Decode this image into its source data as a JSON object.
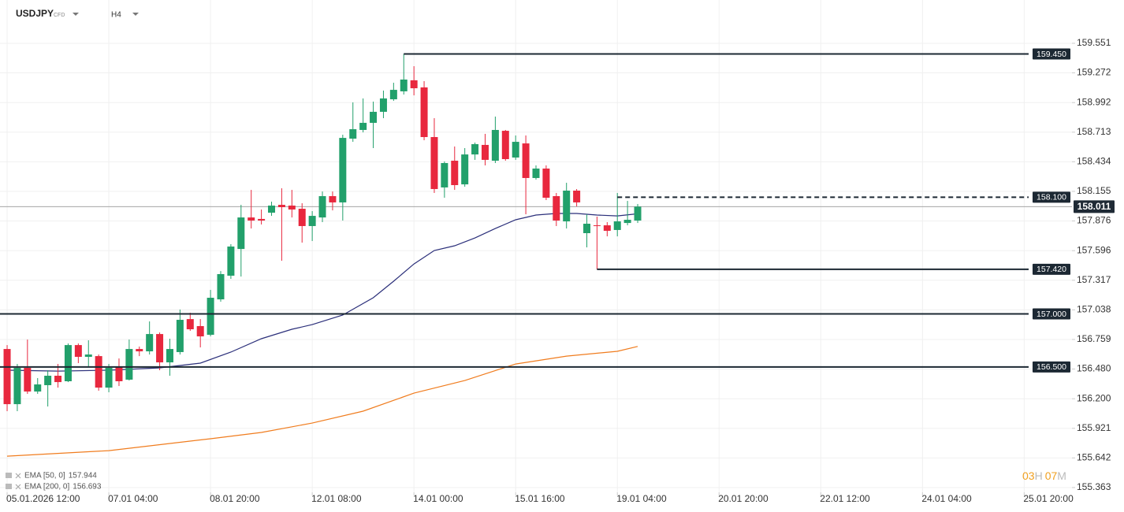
{
  "header": {
    "symbol": "USDJPY",
    "instrument_type": "CFD",
    "interval": "H4"
  },
  "timer": {
    "hours": "03",
    "hours_unit": "H",
    "minutes": "07",
    "minutes_unit": "M"
  },
  "chart_data": {
    "type": "candlestick",
    "up_color": "#22a06b",
    "down_color": "#e8283e",
    "xlim": [
      -0.7,
      104.7
    ],
    "xticks": [
      {
        "value": 0,
        "label": "05.01.2026 12:00"
      },
      {
        "value": 10,
        "label": "07.01 04:00"
      },
      {
        "value": 20,
        "label": "08.01 20:00"
      },
      {
        "value": 30,
        "label": "12.01 08:00"
      },
      {
        "value": 40,
        "label": "14.01 00:00"
      },
      {
        "value": 50,
        "label": "15.01 16:00"
      },
      {
        "value": 60,
        "label": "19.01 04:00"
      },
      {
        "value": 70,
        "label": "20.01 20:00"
      },
      {
        "value": 80,
        "label": "22.01 12:00"
      },
      {
        "value": 90,
        "label": "24.01 04:00"
      },
      {
        "value": 100,
        "label": "25.01 20:00"
      }
    ],
    "ylim": [
      155.318,
      159.959
    ],
    "yticks": [
      159.551,
      159.272,
      158.992,
      158.713,
      158.434,
      158.155,
      157.876,
      157.596,
      157.317,
      157.038,
      156.759,
      {
        "value": 156.48,
        "label": "156.480"
      },
      {
        "value": 156.2,
        "label": "156.200"
      },
      155.921,
      155.642,
      155.363
    ],
    "grid": true,
    "candles": {
      "x": [
        0,
        1,
        2,
        3,
        4,
        5,
        6,
        7,
        8,
        9,
        10,
        11,
        12,
        13,
        14,
        15,
        16,
        17,
        18,
        19,
        20,
        21,
        22,
        23,
        24,
        25,
        26,
        27,
        28,
        29,
        30,
        31,
        32,
        33,
        34,
        35,
        36,
        37,
        38,
        39,
        40,
        41,
        42,
        43,
        44,
        45,
        46,
        47,
        48,
        49,
        50,
        51,
        52,
        53,
        54,
        55,
        56,
        57,
        58,
        59,
        60,
        61,
        62
      ],
      "open": [
        156.669,
        156.149,
        156.491,
        156.268,
        156.328,
        156.417,
        156.365,
        156.706,
        156.595,
        156.602,
        156.305,
        156.498,
        156.38,
        156.669,
        156.647,
        156.81,
        156.543,
        156.64,
        156.951,
        156.885,
        156.803,
        157.137,
        157.36,
        157.612,
        157.909,
        157.895,
        157.954,
        158.028,
        158.021,
        157.991,
        157.828,
        157.909,
        158.11,
        158.051,
        158.652,
        158.734,
        158.801,
        158.905,
        159.023,
        159.098,
        159.202,
        159.135,
        158.667,
        158.192,
        158.444,
        158.221,
        158.503,
        158.593,
        158.444,
        158.726,
        158.474,
        158.607,
        158.281,
        158.37,
        158.11,
        157.872,
        158.162,
        157.761,
        157.835,
        157.835,
        157.791,
        157.857,
        157.88
      ],
      "high": [
        156.706,
        156.528,
        156.758,
        156.395,
        156.469,
        156.528,
        156.721,
        156.721,
        156.751,
        156.617,
        156.528,
        156.58,
        156.758,
        156.692,
        156.929,
        156.825,
        156.766,
        157.041,
        157.011,
        156.951,
        157.226,
        157.404,
        157.657,
        158.028,
        158.169,
        157.984,
        158.058,
        158.184,
        158.169,
        158.043,
        157.969,
        158.154,
        158.154,
        158.689,
        158.994,
        159.031,
        159.001,
        159.105,
        159.179,
        159.45,
        159.335,
        159.194,
        158.845,
        158.437,
        158.578,
        158.563,
        158.615,
        158.697,
        158.86,
        158.734,
        158.682,
        158.682,
        158.4,
        158.4,
        158.14,
        158.236,
        158.177,
        157.939,
        157.917,
        157.865,
        158.14,
        158.065,
        158.036
      ],
      "low": [
        156.083,
        156.083,
        156.246,
        156.246,
        156.127,
        156.305,
        156.357,
        156.536,
        156.506,
        156.276,
        156.261,
        156.32,
        156.372,
        156.602,
        156.617,
        156.469,
        156.417,
        156.617,
        156.84,
        156.684,
        156.788,
        157.115,
        157.33,
        157.352,
        157.805,
        157.843,
        157.924,
        157.501,
        157.909,
        157.672,
        157.687,
        157.865,
        157.976,
        157.88,
        158.622,
        158.711,
        158.563,
        158.845,
        159.008,
        159.068,
        159.06,
        158.637,
        158.14,
        158.095,
        158.169,
        158.199,
        158.452,
        158.4,
        158.422,
        158.444,
        158.452,
        157.939,
        158.266,
        158.073,
        157.828,
        157.805,
        158.013,
        157.627,
        157.42,
        157.731,
        157.731,
        157.835,
        157.857
      ],
      "close": [
        156.149,
        156.491,
        156.268,
        156.335,
        156.417,
        156.357,
        156.706,
        156.595,
        156.617,
        156.305,
        156.491,
        156.365,
        156.669,
        156.647,
        156.81,
        156.543,
        156.669,
        156.944,
        156.855,
        156.788,
        157.152,
        157.375,
        157.635,
        157.909,
        157.88,
        157.88,
        158.021,
        158.006,
        157.984,
        157.828,
        157.924,
        158.11,
        158.051,
        158.659,
        158.741,
        158.801,
        158.905,
        159.031,
        159.112,
        159.209,
        159.127,
        158.667,
        158.177,
        158.422,
        158.214,
        158.503,
        158.6,
        158.452,
        158.734,
        158.459,
        158.622,
        158.281,
        158.37,
        158.095,
        157.88,
        158.162,
        158.051,
        157.85,
        157.828,
        157.783,
        157.872,
        157.887,
        158.011
      ]
    },
    "lines": [
      {
        "name": "EMA [50, 0]",
        "color": "#2b2f7a",
        "x": [
          0,
          5,
          10,
          15,
          19,
          22,
          25,
          28,
          30,
          33,
          36,
          38,
          40,
          42,
          44,
          46,
          48,
          50,
          52,
          54,
          56,
          58,
          60,
          62
        ],
        "values": [
          156.469,
          156.461,
          156.469,
          156.491,
          156.536,
          156.64,
          156.766,
          156.855,
          156.899,
          156.989,
          157.152,
          157.308,
          157.471,
          157.598,
          157.642,
          157.716,
          157.805,
          157.887,
          157.932,
          157.947,
          157.947,
          157.932,
          157.924,
          157.944
        ]
      },
      {
        "name": "EMA [200, 0]",
        "color": "#f07c1e",
        "x": [
          0,
          10,
          20,
          25,
          30,
          35,
          40,
          45,
          50,
          55,
          60,
          62
        ],
        "values": [
          155.659,
          155.711,
          155.823,
          155.882,
          155.971,
          156.083,
          156.253,
          156.372,
          156.528,
          156.602,
          156.647,
          156.693
        ]
      }
    ],
    "levels": [
      {
        "value": 159.45,
        "label": "159.450",
        "x_start": 39
      },
      {
        "value": 158.1,
        "label": "158.100",
        "x_start": 60,
        "dashed": true
      },
      {
        "value": 157.42,
        "label": "157.420",
        "x_start": 58
      },
      {
        "value": 157,
        "label": "157.000"
      },
      {
        "value": 156.5,
        "label": "156.500"
      }
    ],
    "level_color": "#1c2833",
    "last_price": 158.011
  }
}
